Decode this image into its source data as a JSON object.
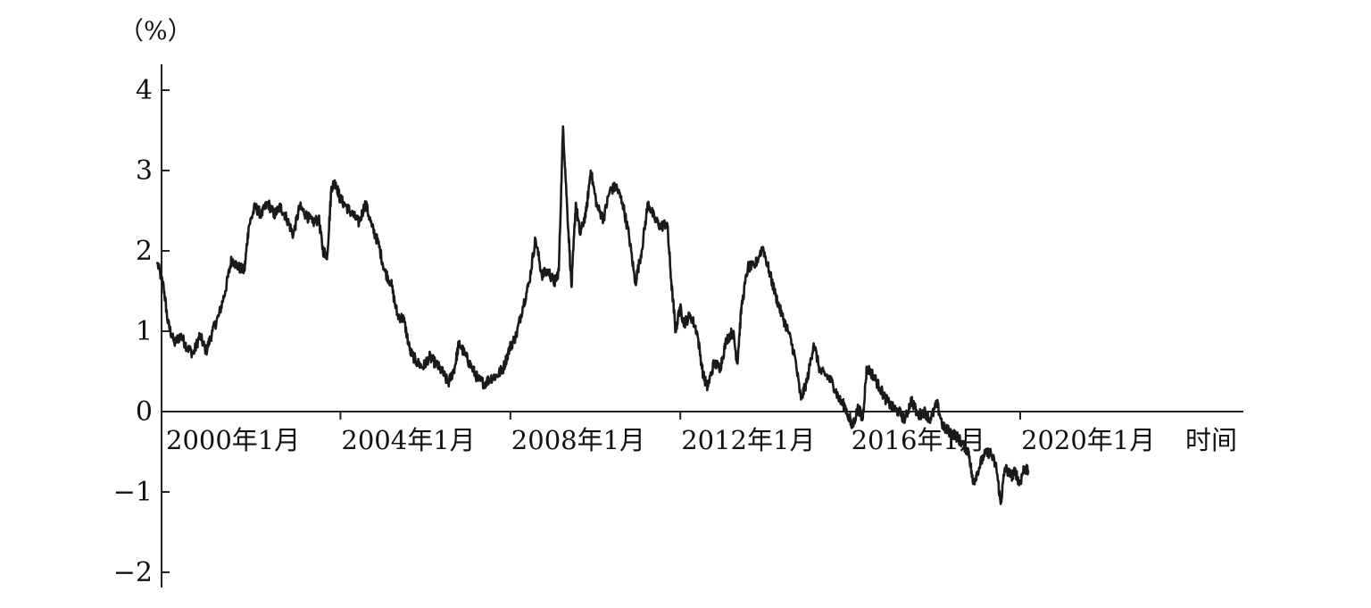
{
  "chart_data": {
    "type": "line",
    "ylabel": "（%）",
    "xlabel": "时间",
    "ylim": [
      -2,
      4.2
    ],
    "xlim": [
      1999.5,
      2024.0
    ],
    "grid": false,
    "legend": "none",
    "yticks": [
      {
        "value": 4,
        "label": "4"
      },
      {
        "value": 3,
        "label": "3"
      },
      {
        "value": 2,
        "label": "2"
      },
      {
        "value": 1,
        "label": "1"
      },
      {
        "value": 0,
        "label": "0"
      },
      {
        "value": -1,
        "label": "−1"
      },
      {
        "value": -2,
        "label": "−2"
      }
    ],
    "xticks": [
      {
        "value": 2000,
        "label": "2000年1月"
      },
      {
        "value": 2004,
        "label": "2004年1月"
      },
      {
        "value": 2008,
        "label": "2008年1月"
      },
      {
        "value": 2012,
        "label": "2012年1月"
      },
      {
        "value": 2016,
        "label": "2016年1月"
      },
      {
        "value": 2020,
        "label": "2020年1月"
      }
    ],
    "series": [
      {
        "color": "#1a1a1a",
        "points": [
          [
            1999.9,
            1.85
          ],
          [
            2000.05,
            1.55
          ],
          [
            2000.15,
            1.1
          ],
          [
            2000.3,
            0.85
          ],
          [
            2000.45,
            0.95
          ],
          [
            2000.6,
            0.8
          ],
          [
            2000.75,
            0.72
          ],
          [
            2000.9,
            0.95
          ],
          [
            2001.05,
            0.75
          ],
          [
            2001.2,
            1.0
          ],
          [
            2001.35,
            1.2
          ],
          [
            2001.5,
            1.5
          ],
          [
            2001.65,
            1.9
          ],
          [
            2001.8,
            1.8
          ],
          [
            2001.95,
            1.75
          ],
          [
            2002.05,
            2.3
          ],
          [
            2002.2,
            2.55
          ],
          [
            2002.35,
            2.45
          ],
          [
            2002.5,
            2.6
          ],
          [
            2002.65,
            2.45
          ],
          [
            2002.8,
            2.55
          ],
          [
            2002.95,
            2.4
          ],
          [
            2003.1,
            2.2
          ],
          [
            2003.25,
            2.55
          ],
          [
            2003.4,
            2.45
          ],
          [
            2003.55,
            2.35
          ],
          [
            2003.7,
            2.4
          ],
          [
            2003.8,
            2.0
          ],
          [
            2003.9,
            1.95
          ],
          [
            2004.0,
            2.8
          ],
          [
            2004.1,
            2.85
          ],
          [
            2004.2,
            2.65
          ],
          [
            2004.35,
            2.55
          ],
          [
            2004.5,
            2.45
          ],
          [
            2004.65,
            2.35
          ],
          [
            2004.8,
            2.6
          ],
          [
            2004.95,
            2.3
          ],
          [
            2005.1,
            2.1
          ],
          [
            2005.25,
            1.75
          ],
          [
            2005.4,
            1.6
          ],
          [
            2005.55,
            1.2
          ],
          [
            2005.7,
            1.15
          ],
          [
            2005.85,
            0.75
          ],
          [
            2006.0,
            0.62
          ],
          [
            2006.15,
            0.55
          ],
          [
            2006.3,
            0.68
          ],
          [
            2006.45,
            0.6
          ],
          [
            2006.6,
            0.5
          ],
          [
            2006.75,
            0.35
          ],
          [
            2006.9,
            0.55
          ],
          [
            2007.0,
            0.85
          ],
          [
            2007.15,
            0.7
          ],
          [
            2007.3,
            0.55
          ],
          [
            2007.45,
            0.4
          ],
          [
            2007.6,
            0.35
          ],
          [
            2007.75,
            0.42
          ],
          [
            2007.9,
            0.45
          ],
          [
            2008.05,
            0.55
          ],
          [
            2008.2,
            0.8
          ],
          [
            2008.35,
            0.95
          ],
          [
            2008.5,
            1.3
          ],
          [
            2008.65,
            1.6
          ],
          [
            2008.8,
            2.15
          ],
          [
            2008.95,
            1.7
          ],
          [
            2009.1,
            1.75
          ],
          [
            2009.25,
            1.6
          ],
          [
            2009.35,
            1.75
          ],
          [
            2009.45,
            3.55
          ],
          [
            2009.55,
            2.5
          ],
          [
            2009.65,
            1.55
          ],
          [
            2009.75,
            2.6
          ],
          [
            2009.85,
            2.2
          ],
          [
            2010.0,
            2.5
          ],
          [
            2010.1,
            3.0
          ],
          [
            2010.25,
            2.55
          ],
          [
            2010.4,
            2.4
          ],
          [
            2010.55,
            2.75
          ],
          [
            2010.7,
            2.8
          ],
          [
            2010.85,
            2.6
          ],
          [
            2011.0,
            2.2
          ],
          [
            2011.15,
            1.6
          ],
          [
            2011.3,
            2.0
          ],
          [
            2011.45,
            2.6
          ],
          [
            2011.6,
            2.4
          ],
          [
            2011.75,
            2.3
          ],
          [
            2011.9,
            2.35
          ],
          [
            2012.0,
            1.6
          ],
          [
            2012.1,
            1.0
          ],
          [
            2012.2,
            1.3
          ],
          [
            2012.3,
            1.1
          ],
          [
            2012.45,
            1.2
          ],
          [
            2012.6,
            1.0
          ],
          [
            2012.75,
            0.45
          ],
          [
            2012.85,
            0.3
          ],
          [
            2013.0,
            0.6
          ],
          [
            2013.15,
            0.55
          ],
          [
            2013.3,
            0.9
          ],
          [
            2013.45,
            1.0
          ],
          [
            2013.55,
            0.6
          ],
          [
            2013.65,
            1.3
          ],
          [
            2013.8,
            1.8
          ],
          [
            2013.95,
            1.8
          ],
          [
            2014.15,
            2.05
          ],
          [
            2014.3,
            1.75
          ],
          [
            2014.45,
            1.45
          ],
          [
            2014.6,
            1.2
          ],
          [
            2014.75,
            1.0
          ],
          [
            2014.9,
            0.7
          ],
          [
            2015.05,
            0.15
          ],
          [
            2015.2,
            0.4
          ],
          [
            2015.35,
            0.85
          ],
          [
            2015.5,
            0.5
          ],
          [
            2015.65,
            0.45
          ],
          [
            2015.8,
            0.35
          ],
          [
            2015.95,
            0.15
          ],
          [
            2016.1,
            0.05
          ],
          [
            2016.25,
            -0.2
          ],
          [
            2016.4,
            0.05
          ],
          [
            2016.5,
            -0.1
          ],
          [
            2016.6,
            0.55
          ],
          [
            2016.75,
            0.45
          ],
          [
            2016.9,
            0.3
          ],
          [
            2017.05,
            0.15
          ],
          [
            2017.2,
            0.05
          ],
          [
            2017.35,
            0.0
          ],
          [
            2017.5,
            -0.1
          ],
          [
            2017.65,
            0.15
          ],
          [
            2017.8,
            -0.05
          ],
          [
            2017.95,
            0.0
          ],
          [
            2018.1,
            -0.1
          ],
          [
            2018.25,
            0.1
          ],
          [
            2018.4,
            -0.2
          ],
          [
            2018.55,
            -0.25
          ],
          [
            2018.7,
            -0.3
          ],
          [
            2018.85,
            -0.4
          ],
          [
            2019.0,
            -0.5
          ],
          [
            2019.1,
            -0.9
          ],
          [
            2019.2,
            -0.75
          ],
          [
            2019.35,
            -0.55
          ],
          [
            2019.5,
            -0.5
          ],
          [
            2019.65,
            -0.7
          ],
          [
            2019.75,
            -1.15
          ],
          [
            2019.85,
            -0.7
          ],
          [
            2020.0,
            -0.8
          ],
          [
            2020.1,
            -0.75
          ],
          [
            2020.2,
            -0.9
          ],
          [
            2020.3,
            -0.7
          ],
          [
            2020.4,
            -0.75
          ]
        ]
      }
    ]
  }
}
